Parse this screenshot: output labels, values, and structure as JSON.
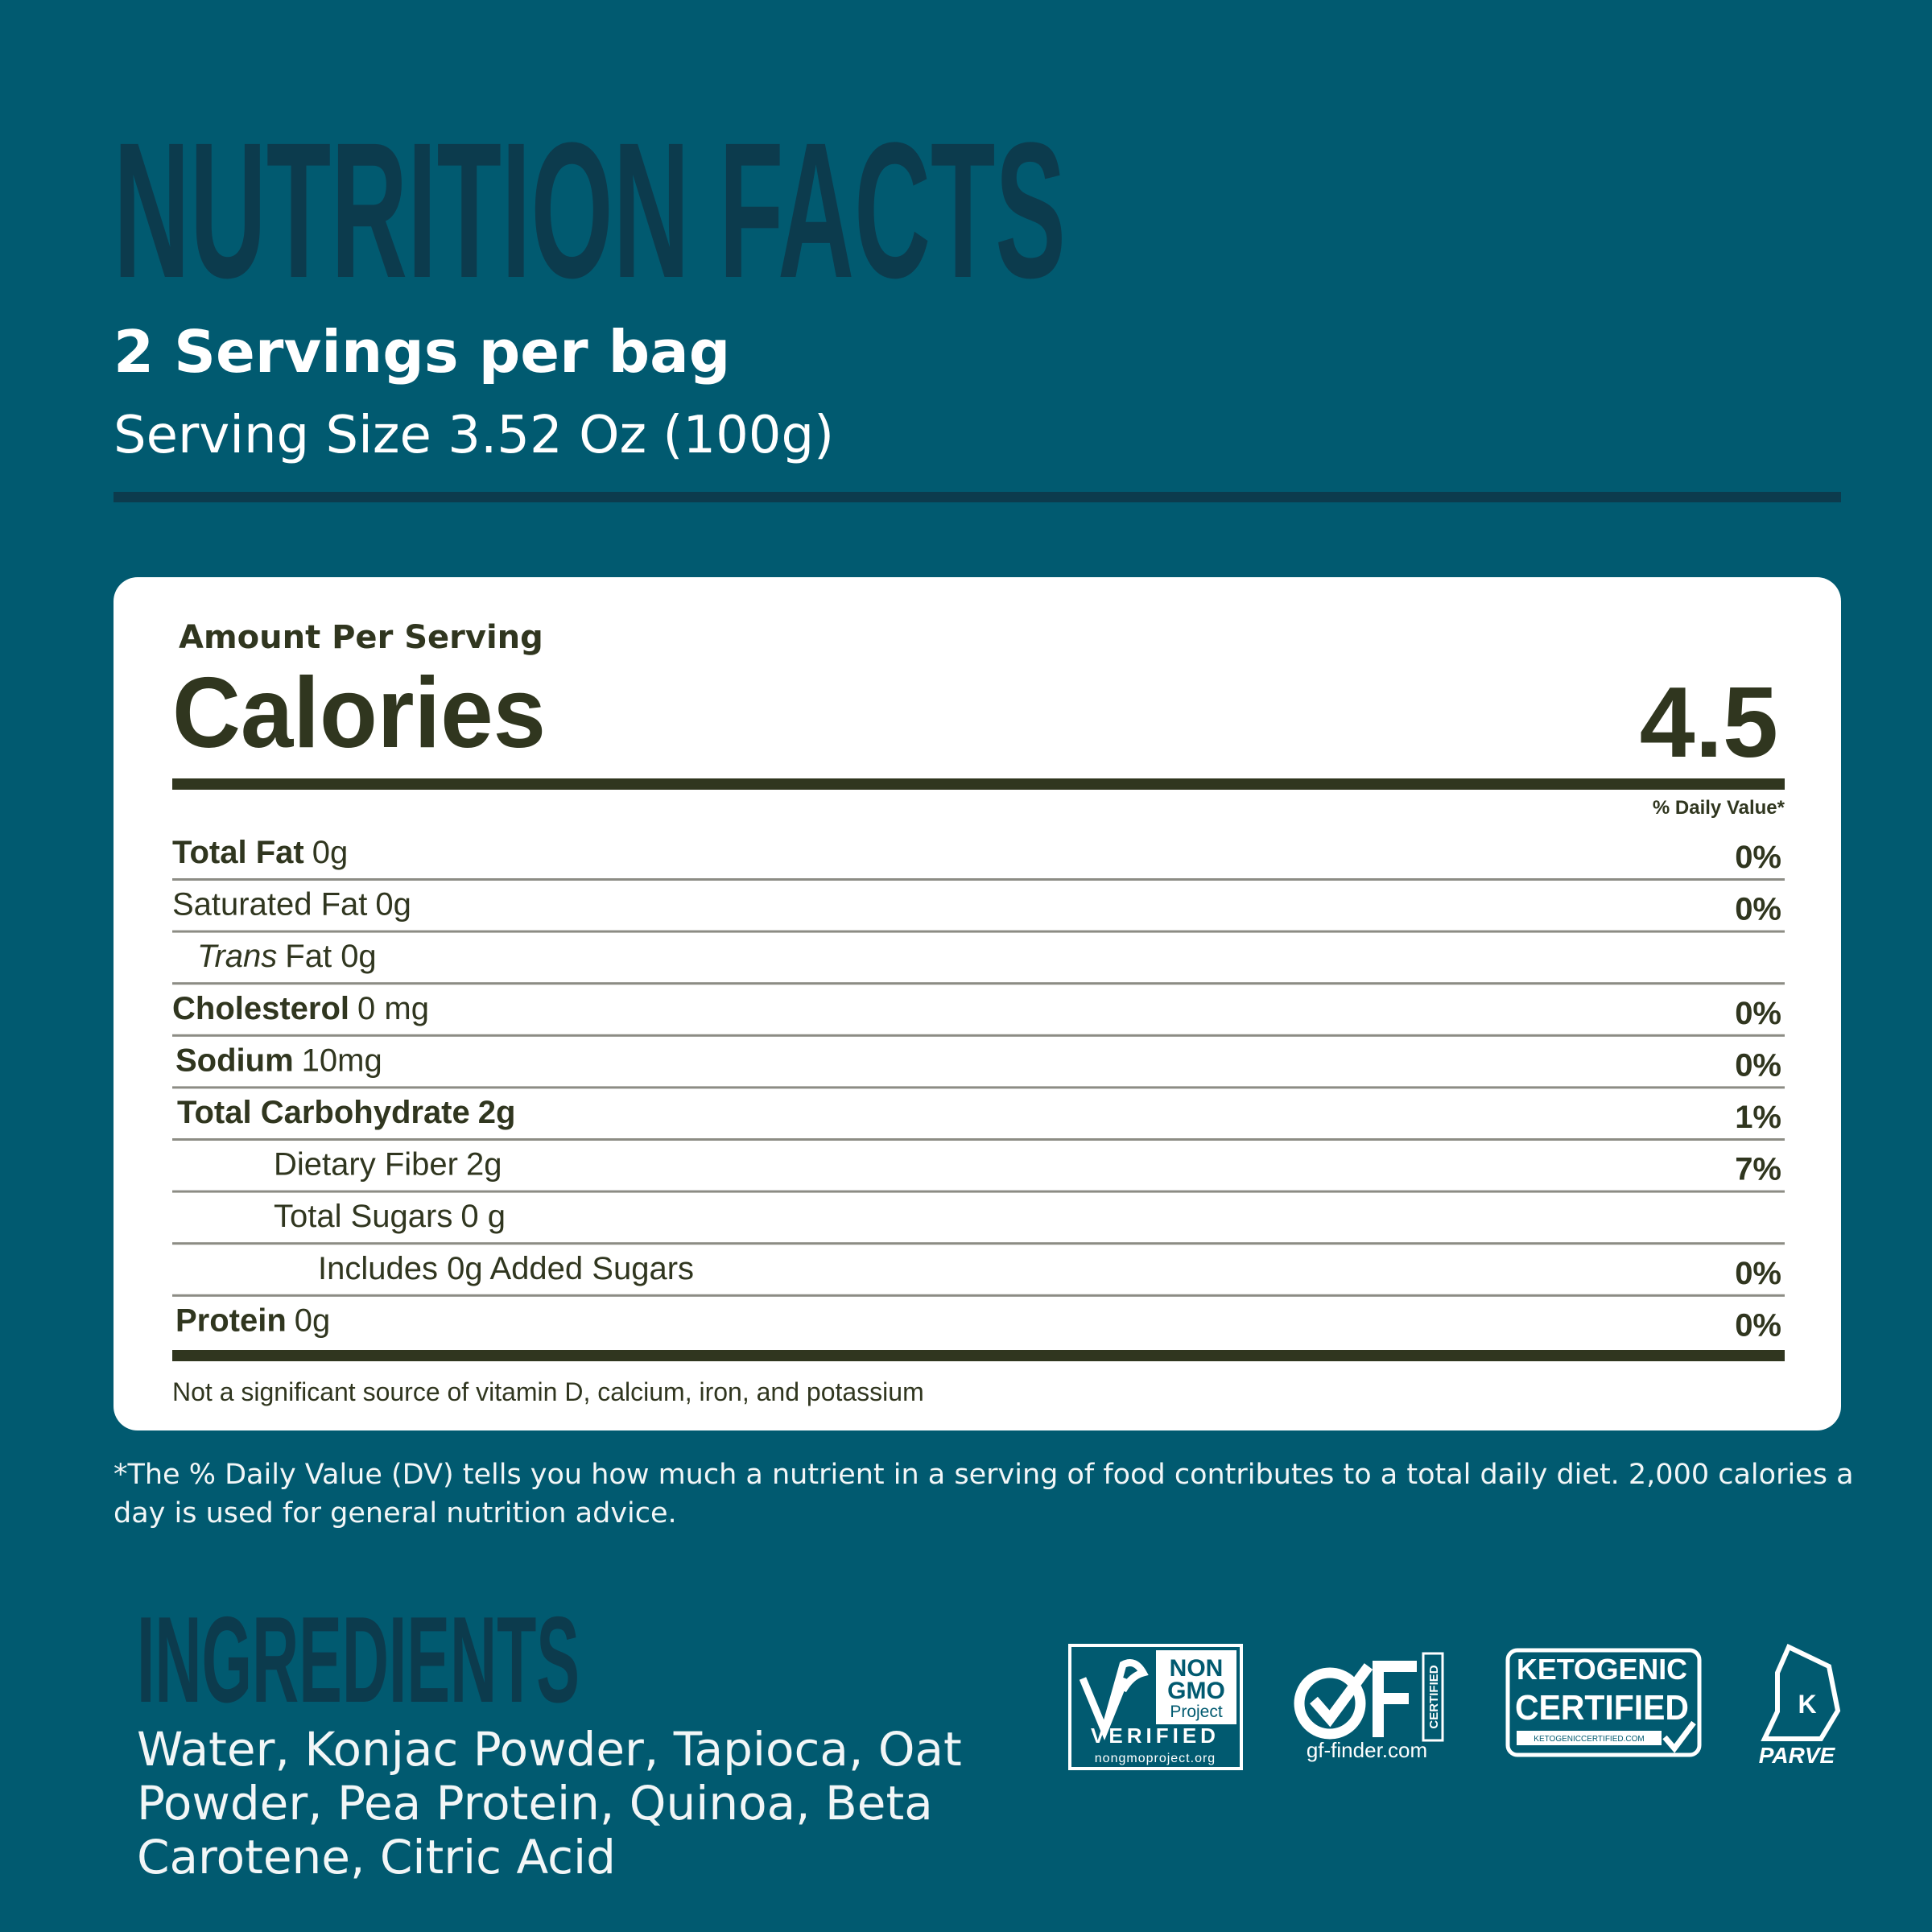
{
  "header": {
    "title": "NUTRITION FACTS",
    "servings": "2 Servings per bag",
    "serving_size": "Serving Size 3.52 Oz (100g)"
  },
  "panel": {
    "amount_label": "Amount Per Serving",
    "calories_label": "Calories",
    "calories": 4.5,
    "daily_value_header": "% Daily Value*",
    "rows": [
      {
        "name": "Total Fat",
        "amount": "0g",
        "dv": "0%"
      },
      {
        "name": "Saturated Fat",
        "amount": "0g",
        "dv": "0%"
      },
      {
        "name": "Trans",
        "amount": "Fat 0g"
      },
      {
        "name": "Cholesterol",
        "amount": "0 mg",
        "dv": "0%"
      },
      {
        "name": "Sodium",
        "amount": "10mg",
        "dv": "0%"
      },
      {
        "name": "Total Carbohydrate",
        "amount": "2g",
        "dv": "1%"
      },
      {
        "name": "Dietary Fiber",
        "amount": "2g",
        "dv": "7%"
      },
      {
        "name": "Total Sugars",
        "amount": "0 g"
      },
      {
        "name": "Includes 0g Added Sugars",
        "dv": "0%"
      },
      {
        "name": "Protein",
        "amount": "0g",
        "dv": "0%"
      }
    ],
    "note": "Not a significant source of vitamin D, calcium, iron, and potassium"
  },
  "footnote": "*The % Daily Value (DV) tells you how much a nutrient in a serving of food contributes to a total daily diet. 2,000 calories a day is used for general nutrition advice.",
  "ingredients": {
    "title": "INGREDIENTS",
    "text": "Water, Konjac Powder, Tapioca, Oat Powder, Pea Protein, Quinoa, Beta Carotene, Citric Acid"
  },
  "badges": {
    "non_gmo": [
      "NON",
      "GMO",
      "Project",
      "VERIFIED",
      "nongmoproject.org"
    ],
    "gluten_free": [
      "CERTIFIED",
      "gf-finder.com"
    ],
    "ketogenic": [
      "KETOGENIC",
      "CERTIFIED",
      "KETOGENICCERTIFIED.COM"
    ],
    "kosher": [
      "K",
      "PARVE"
    ]
  }
}
